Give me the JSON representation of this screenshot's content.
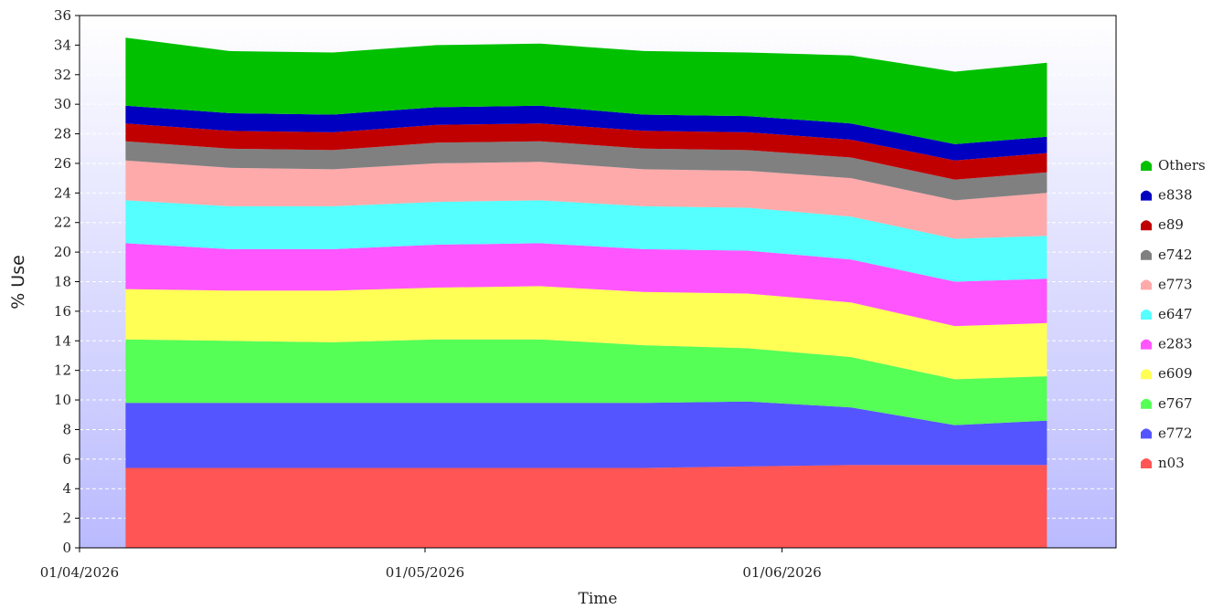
{
  "chart_data": {
    "type": "area",
    "stacked": true,
    "xlabel": "Time",
    "ylabel": "% Use",
    "ylim": [
      0,
      36
    ],
    "yticks": [
      0,
      2,
      4,
      6,
      8,
      10,
      12,
      14,
      16,
      18,
      20,
      22,
      24,
      26,
      28,
      30,
      32,
      34,
      36
    ],
    "xlim": [
      "2026-04-01",
      "2026-06-30"
    ],
    "xticks": [
      {
        "date": "2026-04-01",
        "label": "01/04/2026"
      },
      {
        "date": "2026-05-01",
        "label": "01/05/2026"
      },
      {
        "date": "2026-06-01",
        "label": "01/06/2026"
      }
    ],
    "x": [
      "2026-04-05",
      "2026-04-14",
      "2026-04-23",
      "2026-05-02",
      "2026-05-11",
      "2026-05-20",
      "2026-05-29",
      "2026-06-07",
      "2026-06-16",
      "2026-06-24"
    ],
    "grid": true,
    "legend_position": "right",
    "series": [
      {
        "name": "n03",
        "color": "#ff5555",
        "values": [
          5.4,
          5.4,
          5.4,
          5.4,
          5.4,
          5.4,
          5.5,
          5.6,
          5.6,
          5.6
        ]
      },
      {
        "name": "e772",
        "color": "#5555ff",
        "values": [
          4.4,
          4.4,
          4.4,
          4.4,
          4.4,
          4.4,
          4.4,
          3.9,
          2.7,
          3.0
        ]
      },
      {
        "name": "e767",
        "color": "#55ff55",
        "values": [
          4.3,
          4.2,
          4.1,
          4.3,
          4.3,
          3.9,
          3.6,
          3.4,
          3.1,
          3.0
        ]
      },
      {
        "name": "e609",
        "color": "#ffff55",
        "values": [
          3.4,
          3.4,
          3.5,
          3.5,
          3.6,
          3.6,
          3.7,
          3.7,
          3.6,
          3.6
        ]
      },
      {
        "name": "e283",
        "color": "#ff55ff",
        "values": [
          3.1,
          2.8,
          2.8,
          2.9,
          2.9,
          2.9,
          2.9,
          2.9,
          3.0,
          3.0
        ]
      },
      {
        "name": "e647",
        "color": "#55ffff",
        "values": [
          2.9,
          2.9,
          2.9,
          2.9,
          2.9,
          2.9,
          2.9,
          2.9,
          2.9,
          2.9
        ]
      },
      {
        "name": "e773",
        "color": "#ffaaaa",
        "values": [
          2.7,
          2.6,
          2.5,
          2.6,
          2.6,
          2.5,
          2.5,
          2.6,
          2.6,
          2.9
        ]
      },
      {
        "name": "e742",
        "color": "#808080",
        "values": [
          1.3,
          1.3,
          1.3,
          1.4,
          1.4,
          1.4,
          1.4,
          1.4,
          1.4,
          1.4
        ]
      },
      {
        "name": "e89",
        "color": "#c00000",
        "values": [
          1.2,
          1.2,
          1.2,
          1.2,
          1.2,
          1.2,
          1.2,
          1.2,
          1.3,
          1.3
        ]
      },
      {
        "name": "e838",
        "color": "#0000c0",
        "values": [
          1.2,
          1.2,
          1.2,
          1.2,
          1.2,
          1.1,
          1.1,
          1.1,
          1.1,
          1.1
        ]
      },
      {
        "name": "Others",
        "color": "#00c000",
        "values": [
          4.6,
          4.2,
          4.2,
          4.2,
          4.2,
          4.3,
          4.3,
          4.6,
          4.9,
          5.0
        ]
      }
    ]
  }
}
